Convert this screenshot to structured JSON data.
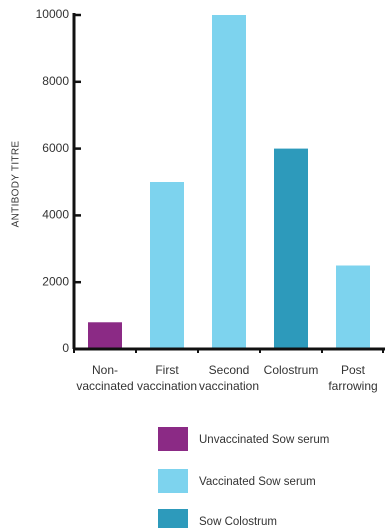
{
  "chart_data": {
    "type": "bar",
    "ylabel": "ANTIBODY TITRE",
    "xlabel": "",
    "ylim": [
      0,
      10000
    ],
    "yticks": [
      0,
      2000,
      4000,
      6000,
      8000,
      10000
    ],
    "grid": false,
    "legend_position": "bottom",
    "categories": [
      [
        "Non-",
        "vaccinated"
      ],
      [
        "First",
        "vaccination"
      ],
      [
        "Second",
        "vaccination"
      ],
      [
        "Colostrum"
      ],
      [
        "Post",
        "farrowing"
      ]
    ],
    "values": [
      800,
      5000,
      10000,
      6000,
      2500
    ],
    "bar_series": [
      0,
      1,
      1,
      2,
      1
    ],
    "series": [
      {
        "name": "Unvaccinated Sow serum",
        "color": "#8b2a85"
      },
      {
        "name": "Vaccinated Sow serum",
        "color": "#7dd3ee"
      },
      {
        "name": "Sow Colostrum",
        "color": "#2d9abb"
      }
    ]
  }
}
